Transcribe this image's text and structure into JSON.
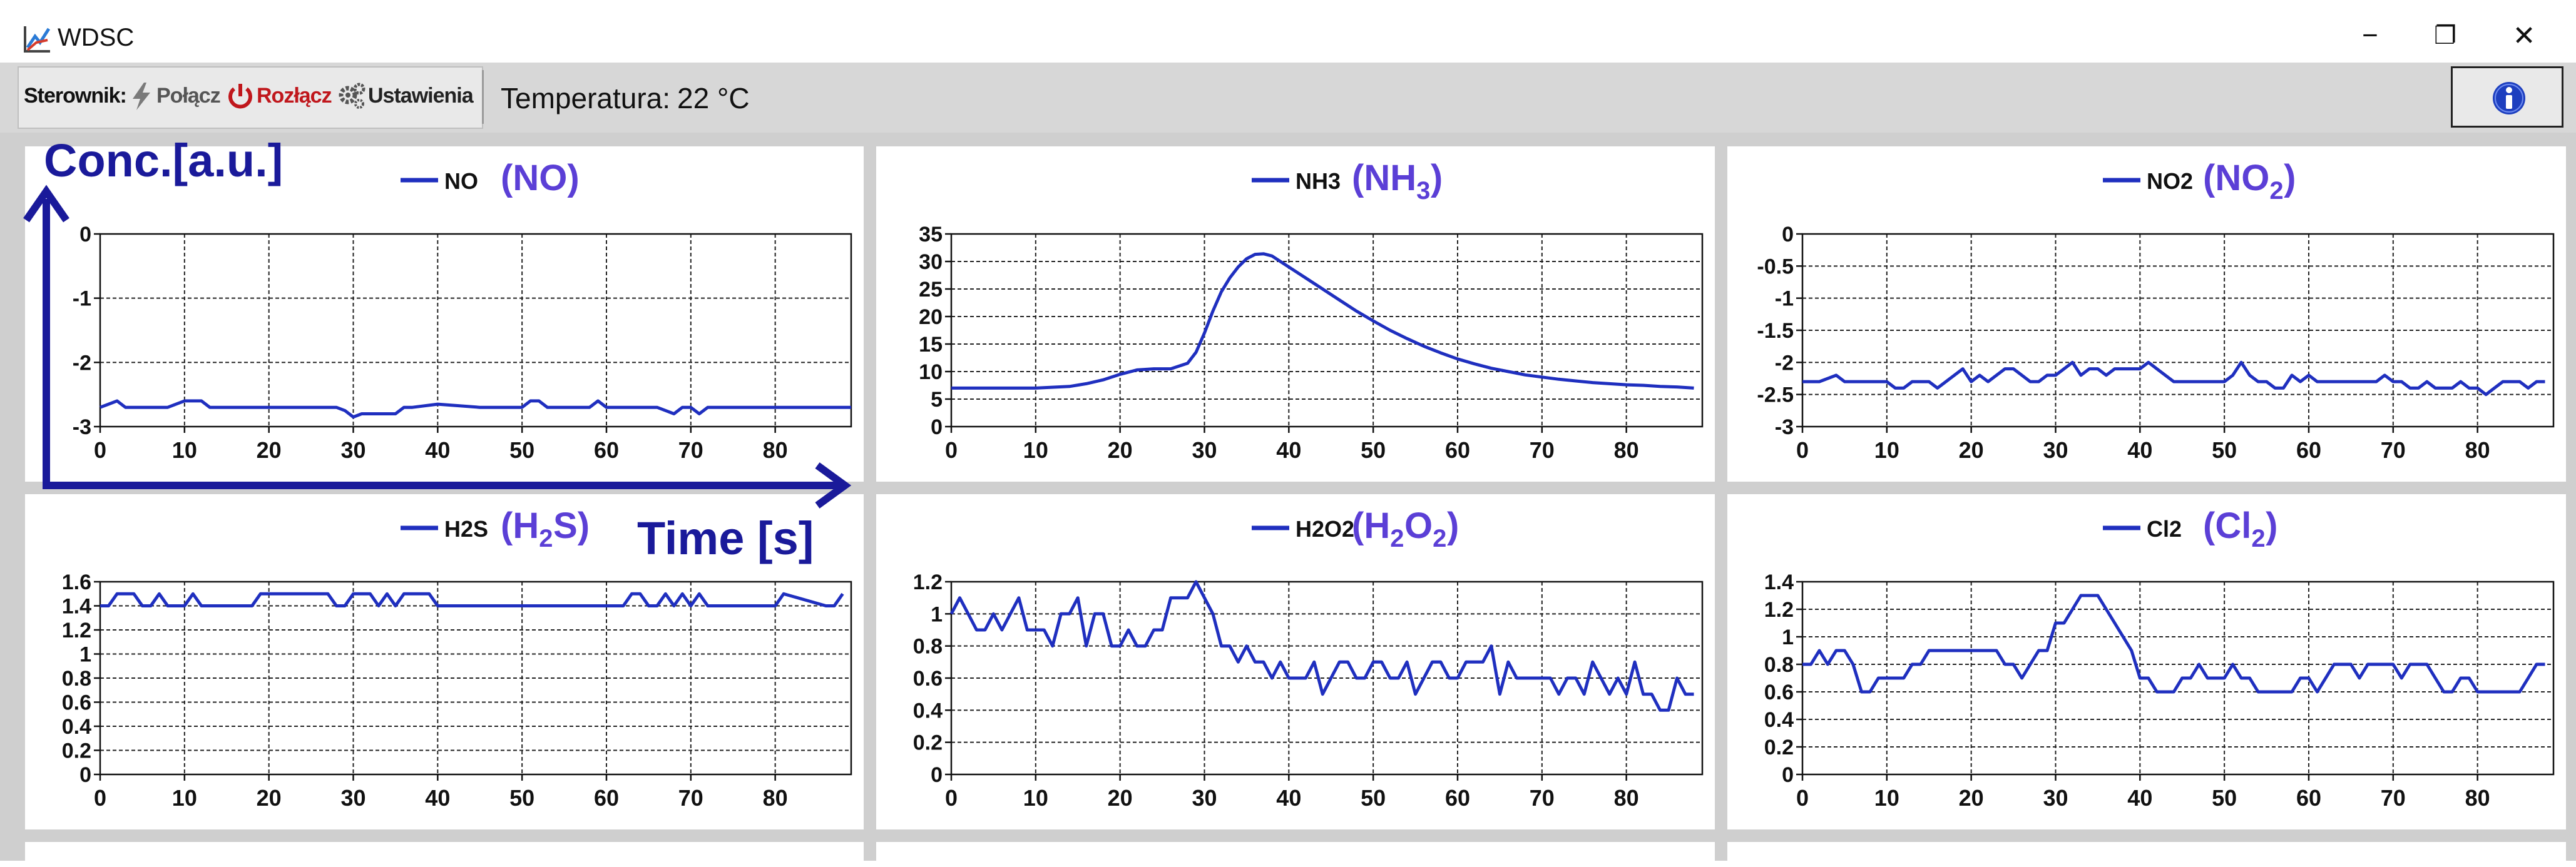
{
  "window": {
    "title": "WDSC",
    "icons": {
      "app": "chart-app-icon",
      "minimize": "minimize-icon",
      "restore": "restore-icon",
      "close": "close-icon"
    },
    "minimize_glyph": "−",
    "restore_glyph": "❐",
    "close_glyph": "✕"
  },
  "toolbar": {
    "controller_label": "Sterownik:",
    "connect_label": "Połącz",
    "disconnect_label": "Rozłącz",
    "settings_label": "Ustawienia",
    "temperature_label": "Temperatura:",
    "temperature_value": "22 °C",
    "icons": {
      "connect": "lightning-icon",
      "disconnect": "power-icon",
      "settings": "gears-icon",
      "info": "info-icon"
    },
    "colors": {
      "disconnect": "#c0171c",
      "info": "#1d3fbf"
    }
  },
  "annotations": {
    "y_axis": "Conc.[a.u.]",
    "x_axis": "Time [s]",
    "color": "#1a1a9a"
  },
  "chart_data": [
    {
      "type": "line",
      "legend": "NO",
      "formula_parts": [
        [
          "NO",
          ""
        ]
      ],
      "xticks": [
        0,
        10,
        20,
        30,
        40,
        50,
        60,
        70,
        80
      ],
      "yticks": [
        "-3",
        "-2",
        "-1",
        "0"
      ],
      "ylim": [
        -3,
        0
      ],
      "xlim": [
        0,
        89
      ],
      "color": "#1f2fbf",
      "x": [
        0,
        1,
        2,
        3,
        5,
        8,
        10,
        11,
        12,
        13,
        15,
        20,
        25,
        28,
        29,
        30,
        31,
        32,
        35,
        36,
        37,
        40,
        45,
        50,
        51,
        52,
        53,
        55,
        58,
        59,
        60,
        61,
        62,
        65,
        66,
        67,
        68,
        69,
        70,
        71,
        72,
        75,
        80,
        85,
        89
      ],
      "y": [
        -2.7,
        -2.65,
        -2.6,
        -2.7,
        -2.7,
        -2.7,
        -2.6,
        -2.6,
        -2.6,
        -2.7,
        -2.7,
        -2.7,
        -2.7,
        -2.7,
        -2.75,
        -2.85,
        -2.8,
        -2.8,
        -2.8,
        -2.7,
        -2.7,
        -2.65,
        -2.7,
        -2.7,
        -2.6,
        -2.6,
        -2.7,
        -2.7,
        -2.7,
        -2.6,
        -2.7,
        -2.7,
        -2.7,
        -2.7,
        -2.7,
        -2.75,
        -2.8,
        -2.7,
        -2.7,
        -2.8,
        -2.7,
        -2.7,
        -2.7,
        -2.7,
        -2.7
      ]
    },
    {
      "type": "line",
      "legend": "NH3",
      "formula_parts": [
        [
          "NH",
          ""
        ],
        [
          "3",
          "sub"
        ]
      ],
      "xticks": [
        0,
        10,
        20,
        30,
        40,
        50,
        60,
        70,
        80
      ],
      "yticks": [
        "0",
        "5",
        "10",
        "15",
        "20",
        "25",
        "30",
        "35"
      ],
      "ylim": [
        0,
        35
      ],
      "xlim": [
        0,
        89
      ],
      "color": "#1f2fbf",
      "x": [
        0,
        5,
        10,
        14,
        16,
        18,
        20,
        22,
        24,
        26,
        28,
        29,
        30,
        31,
        32,
        33,
        34,
        35,
        36,
        37,
        38,
        39,
        40,
        42,
        44,
        46,
        48,
        50,
        52,
        54,
        56,
        58,
        60,
        62,
        64,
        66,
        68,
        70,
        72,
        74,
        76,
        78,
        80,
        82,
        84,
        86,
        88
      ],
      "y": [
        7,
        7,
        7,
        7.3,
        7.8,
        8.5,
        9.5,
        10.3,
        10.5,
        10.5,
        11.5,
        13.5,
        17,
        21,
        24.5,
        27,
        29,
        30.5,
        31.3,
        31.4,
        31,
        30,
        29,
        27,
        25,
        23,
        21,
        19.2,
        17.5,
        16,
        14.6,
        13.4,
        12.3,
        11.4,
        10.6,
        10,
        9.4,
        9,
        8.6,
        8.3,
        8,
        7.8,
        7.6,
        7.5,
        7.3,
        7.2,
        7
      ]
    },
    {
      "type": "line",
      "legend": "NO2",
      "formula_parts": [
        [
          "NO",
          ""
        ],
        [
          "2",
          "sub"
        ]
      ],
      "xticks": [
        0,
        10,
        20,
        30,
        40,
        50,
        60,
        70,
        80
      ],
      "yticks": [
        "-3",
        "-2.5",
        "-2",
        "-1.5",
        "-1",
        "-0.5",
        "0"
      ],
      "ylim": [
        -3,
        0
      ],
      "xlim": [
        0,
        89
      ],
      "color": "#1f2fbf",
      "x": [
        0,
        2,
        4,
        5,
        7,
        9,
        10,
        11,
        12,
        13,
        14,
        15,
        16,
        17,
        18,
        19,
        20,
        21,
        22,
        23,
        24,
        25,
        26,
        27,
        28,
        29,
        30,
        31,
        32,
        33,
        34,
        35,
        36,
        37,
        38,
        39,
        40,
        41,
        42,
        43,
        44,
        45,
        46,
        47,
        48,
        49,
        50,
        51,
        52,
        53,
        54,
        55,
        56,
        57,
        58,
        59,
        60,
        61,
        62,
        63,
        64,
        65,
        66,
        67,
        68,
        69,
        70,
        71,
        72,
        73,
        74,
        75,
        76,
        77,
        78,
        79,
        80,
        81,
        82,
        83,
        84,
        85,
        86,
        87,
        88
      ],
      "y": [
        -2.3,
        -2.3,
        -2.2,
        -2.3,
        -2.3,
        -2.3,
        -2.3,
        -2.4,
        -2.4,
        -2.3,
        -2.3,
        -2.3,
        -2.4,
        -2.3,
        -2.2,
        -2.1,
        -2.3,
        -2.2,
        -2.3,
        -2.2,
        -2.1,
        -2.1,
        -2.2,
        -2.3,
        -2.3,
        -2.2,
        -2.2,
        -2.1,
        -2.0,
        -2.2,
        -2.1,
        -2.1,
        -2.2,
        -2.1,
        -2.1,
        -2.1,
        -2.1,
        -2.0,
        -2.1,
        -2.2,
        -2.3,
        -2.3,
        -2.3,
        -2.3,
        -2.3,
        -2.3,
        -2.3,
        -2.2,
        -2.0,
        -2.2,
        -2.3,
        -2.3,
        -2.4,
        -2.4,
        -2.2,
        -2.3,
        -2.2,
        -2.3,
        -2.3,
        -2.3,
        -2.3,
        -2.3,
        -2.3,
        -2.3,
        -2.3,
        -2.2,
        -2.3,
        -2.3,
        -2.4,
        -2.4,
        -2.3,
        -2.4,
        -2.4,
        -2.4,
        -2.3,
        -2.4,
        -2.4,
        -2.5,
        -2.4,
        -2.3,
        -2.3,
        -2.3,
        -2.4,
        -2.3,
        -2.3
      ]
    },
    {
      "type": "line",
      "legend": "H2S",
      "formula_parts": [
        [
          "H",
          ""
        ],
        [
          "2",
          "sub"
        ],
        [
          "S",
          ""
        ]
      ],
      "xticks": [
        0,
        10,
        20,
        30,
        40,
        50,
        60,
        70,
        80
      ],
      "yticks": [
        "0",
        "0.2",
        "0.4",
        "0.6",
        "0.8",
        "1",
        "1.2",
        "1.4",
        "1.6"
      ],
      "ylim": [
        0,
        1.6
      ],
      "xlim": [
        0,
        89
      ],
      "color": "#1f2fbf",
      "x": [
        0,
        1,
        2,
        3,
        4,
        5,
        6,
        7,
        8,
        9,
        10,
        11,
        12,
        13,
        18,
        19,
        26,
        27,
        28,
        29,
        30,
        31,
        32,
        33,
        34,
        35,
        36,
        37,
        38,
        39,
        40,
        41,
        62,
        63,
        64,
        65,
        66,
        67,
        68,
        69,
        70,
        71,
        72,
        73,
        74,
        80,
        81,
        86,
        87,
        88
      ],
      "y": [
        1.4,
        1.4,
        1.5,
        1.5,
        1.5,
        1.4,
        1.4,
        1.5,
        1.4,
        1.4,
        1.4,
        1.5,
        1.4,
        1.4,
        1.4,
        1.5,
        1.5,
        1.5,
        1.4,
        1.4,
        1.5,
        1.5,
        1.5,
        1.4,
        1.5,
        1.4,
        1.5,
        1.5,
        1.5,
        1.5,
        1.4,
        1.4,
        1.4,
        1.5,
        1.5,
        1.4,
        1.4,
        1.5,
        1.4,
        1.5,
        1.4,
        1.5,
        1.4,
        1.4,
        1.4,
        1.4,
        1.5,
        1.4,
        1.4,
        1.5
      ]
    },
    {
      "type": "line",
      "legend": "H2O2",
      "formula_parts": [
        [
          "H",
          ""
        ],
        [
          "2",
          "sub"
        ],
        [
          "O",
          ""
        ],
        [
          "2",
          "sub"
        ]
      ],
      "xticks": [
        0,
        10,
        20,
        30,
        40,
        50,
        60,
        70,
        80
      ],
      "yticks": [
        "0",
        "0.2",
        "0.4",
        "0.6",
        "0.8",
        "1",
        "1.2"
      ],
      "ylim": [
        0,
        1.2
      ],
      "xlim": [
        0,
        89
      ],
      "color": "#1f2fbf",
      "x": [
        0,
        1,
        2,
        3,
        4,
        5,
        6,
        7,
        8,
        9,
        10,
        11,
        12,
        13,
        14,
        15,
        16,
        17,
        18,
        19,
        20,
        21,
        22,
        23,
        24,
        25,
        26,
        27,
        28,
        29,
        30,
        31,
        32,
        33,
        34,
        35,
        36,
        37,
        38,
        39,
        40,
        41,
        42,
        43,
        44,
        45,
        46,
        47,
        48,
        49,
        50,
        51,
        52,
        53,
        54,
        55,
        56,
        57,
        58,
        59,
        60,
        61,
        62,
        63,
        64,
        65,
        66,
        67,
        68,
        69,
        70,
        71,
        72,
        73,
        74,
        75,
        76,
        77,
        78,
        79,
        80,
        81,
        82,
        83,
        84,
        85,
        86,
        87,
        88
      ],
      "y": [
        1.0,
        1.1,
        1.0,
        0.9,
        0.9,
        1.0,
        0.9,
        1.0,
        1.1,
        0.9,
        0.9,
        0.9,
        0.8,
        1.0,
        1.0,
        1.1,
        0.8,
        1.0,
        1.0,
        0.8,
        0.8,
        0.9,
        0.8,
        0.8,
        0.9,
        0.9,
        1.1,
        1.1,
        1.1,
        1.2,
        1.1,
        1.0,
        0.8,
        0.8,
        0.7,
        0.8,
        0.7,
        0.7,
        0.6,
        0.7,
        0.6,
        0.6,
        0.6,
        0.7,
        0.5,
        0.6,
        0.7,
        0.7,
        0.6,
        0.6,
        0.7,
        0.7,
        0.6,
        0.6,
        0.7,
        0.5,
        0.6,
        0.7,
        0.7,
        0.6,
        0.6,
        0.7,
        0.7,
        0.7,
        0.8,
        0.5,
        0.7,
        0.6,
        0.6,
        0.6,
        0.6,
        0.6,
        0.5,
        0.6,
        0.6,
        0.5,
        0.7,
        0.6,
        0.5,
        0.6,
        0.5,
        0.7,
        0.5,
        0.5,
        0.4,
        0.4,
        0.6,
        0.5,
        0.5
      ]
    },
    {
      "type": "line",
      "legend": "Cl2",
      "formula_parts": [
        [
          "Cl",
          ""
        ],
        [
          "2",
          "sub"
        ]
      ],
      "xticks": [
        0,
        10,
        20,
        30,
        40,
        50,
        60,
        70,
        80
      ],
      "yticks": [
        "0",
        "0.2",
        "0.4",
        "0.6",
        "0.8",
        "1",
        "1.2",
        "1.4"
      ],
      "ylim": [
        0,
        1.4
      ],
      "xlim": [
        0,
        89
      ],
      "color": "#1f2fbf",
      "x": [
        0,
        1,
        2,
        3,
        4,
        5,
        6,
        7,
        8,
        9,
        10,
        11,
        12,
        13,
        14,
        15,
        16,
        17,
        18,
        19,
        20,
        21,
        22,
        23,
        24,
        25,
        26,
        27,
        28,
        29,
        30,
        31,
        32,
        33,
        34,
        35,
        36,
        37,
        38,
        39,
        40,
        41,
        42,
        43,
        44,
        45,
        46,
        47,
        48,
        49,
        50,
        51,
        52,
        53,
        54,
        55,
        56,
        57,
        58,
        59,
        60,
        61,
        62,
        63,
        64,
        65,
        66,
        67,
        68,
        69,
        70,
        71,
        72,
        73,
        74,
        75,
        76,
        77,
        78,
        79,
        80,
        81,
        82,
        83,
        84,
        85,
        86,
        87,
        88
      ],
      "y": [
        0.8,
        0.8,
        0.9,
        0.8,
        0.9,
        0.9,
        0.8,
        0.6,
        0.6,
        0.7,
        0.7,
        0.7,
        0.7,
        0.8,
        0.8,
        0.9,
        0.9,
        0.9,
        0.9,
        0.9,
        0.9,
        0.9,
        0.9,
        0.9,
        0.8,
        0.8,
        0.7,
        0.8,
        0.9,
        0.9,
        1.1,
        1.1,
        1.2,
        1.3,
        1.3,
        1.3,
        1.2,
        1.1,
        1.0,
        0.9,
        0.7,
        0.7,
        0.6,
        0.6,
        0.6,
        0.7,
        0.7,
        0.8,
        0.7,
        0.7,
        0.7,
        0.8,
        0.7,
        0.7,
        0.6,
        0.6,
        0.6,
        0.6,
        0.6,
        0.7,
        0.7,
        0.6,
        0.7,
        0.8,
        0.8,
        0.8,
        0.7,
        0.8,
        0.8,
        0.8,
        0.8,
        0.7,
        0.8,
        0.8,
        0.8,
        0.7,
        0.6,
        0.6,
        0.7,
        0.7,
        0.6,
        0.6,
        0.6,
        0.6,
        0.6,
        0.6,
        0.7,
        0.8,
        0.8
      ]
    }
  ]
}
